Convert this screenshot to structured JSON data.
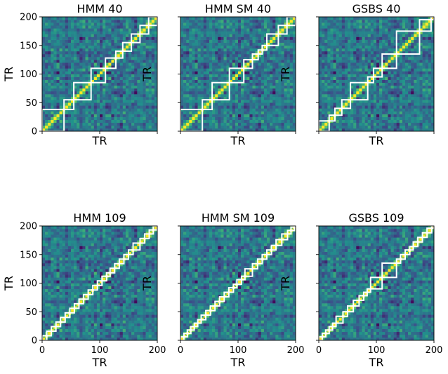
{
  "chart_data": [
    {
      "type": "heatmap",
      "title": "HMM 40",
      "xlabel": "TR",
      "ylabel": "TR",
      "xlim": [
        0,
        200
      ],
      "ylim": [
        0,
        200
      ],
      "xticks": [],
      "yticks": [
        "0",
        "50",
        "100",
        "150",
        "200"
      ],
      "boundaries": [
        0,
        38,
        55,
        85,
        110,
        128,
        140,
        155,
        170,
        185,
        201
      ]
    },
    {
      "type": "heatmap",
      "title": "HMM SM 40",
      "xlabel": "TR",
      "ylabel": "TR",
      "xlim": [
        0,
        200
      ],
      "ylim": [
        0,
        200
      ],
      "xticks": [],
      "yticks": [],
      "boundaries": [
        0,
        38,
        55,
        85,
        110,
        125,
        135,
        142,
        150,
        170,
        185,
        201
      ]
    },
    {
      "type": "heatmap",
      "title": "GSBS 40",
      "xlabel": "TR",
      "ylabel": "TR",
      "xlim": [
        0,
        200
      ],
      "ylim": [
        0,
        200
      ],
      "xticks": [],
      "yticks": [],
      "boundaries": [
        0,
        18,
        28,
        40,
        55,
        85,
        95,
        110,
        135,
        175,
        195,
        201
      ]
    },
    {
      "type": "heatmap",
      "title": "HMM 109",
      "xlabel": "TR",
      "ylabel": "TR",
      "xlim": [
        0,
        200
      ],
      "ylim": [
        0,
        200
      ],
      "xticks": [
        "0",
        "100",
        "200"
      ],
      "yticks": [
        "0",
        "50",
        "100",
        "150",
        "200"
      ],
      "boundaries": [
        0,
        8,
        16,
        24,
        32,
        40,
        48,
        56,
        64,
        72,
        80,
        88,
        96,
        104,
        112,
        118,
        126,
        134,
        142,
        150,
        158,
        170,
        178,
        186,
        193,
        201
      ]
    },
    {
      "type": "heatmap",
      "title": "HMM SM 109",
      "xlabel": "TR",
      "ylabel": "TR",
      "xlim": [
        0,
        200
      ],
      "ylim": [
        0,
        200
      ],
      "xticks": [
        "0",
        "100",
        "200"
      ],
      "yticks": [],
      "boundaries": [
        0,
        6,
        12,
        18,
        24,
        30,
        36,
        44,
        52,
        60,
        68,
        76,
        84,
        92,
        98,
        106,
        112,
        125,
        134,
        142,
        150,
        158,
        166,
        176,
        186,
        192,
        198,
        201
      ]
    },
    {
      "type": "heatmap",
      "title": "GSBS 109",
      "xlabel": "TR",
      "ylabel": "TR",
      "xlim": [
        0,
        200
      ],
      "ylim": [
        0,
        200
      ],
      "xticks": [
        "0",
        "100",
        "200"
      ],
      "yticks": [],
      "boundaries": [
        0,
        6,
        12,
        18,
        24,
        30,
        42,
        50,
        60,
        70,
        78,
        84,
        90,
        110,
        135,
        142,
        150,
        158,
        164,
        172,
        180,
        188,
        196,
        201
      ]
    }
  ]
}
